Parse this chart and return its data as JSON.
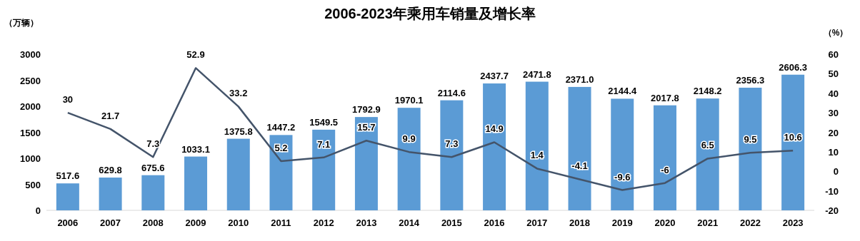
{
  "chart_data": {
    "type": "bar",
    "title": "2006-2023年乘用车销量及增长率",
    "ylabel": "（万辆）",
    "y2label": "（%）",
    "categories": [
      "2006",
      "2007",
      "2008",
      "2009",
      "2010",
      "2011",
      "2012",
      "2013",
      "2014",
      "2015",
      "2016",
      "2017",
      "2018",
      "2019",
      "2020",
      "2021",
      "2022",
      "2023"
    ],
    "series": [
      {
        "color": "#5b9bd5",
        "values": [
          517.6,
          629.8,
          675.6,
          1033.1,
          1375.8,
          1447.2,
          1549.5,
          1792.9,
          1970.1,
          2114.6,
          2437.7,
          2471.8,
          2371.0,
          2144.4,
          2017.8,
          2148.2,
          2356.3,
          2606.3
        ],
        "value_labels": [
          "517.6",
          "629.8",
          "675.6",
          "1033.1",
          "1375.8",
          "1447.2",
          "1549.5",
          "1792.9",
          "1970.1",
          "2114.6",
          "2437.7",
          "2471.8",
          "2371.0",
          "2144.4",
          "2017.8",
          "2148.2",
          "2356.3",
          "2606.3"
        ]
      },
      {
        "type": "line",
        "axis": "y2",
        "color": "#44546a",
        "values": [
          30,
          21.7,
          7.3,
          52.9,
          33.2,
          5.2,
          7.1,
          15.7,
          9.9,
          7.3,
          14.9,
          1.4,
          -4.1,
          -9.6,
          -6,
          6.5,
          9.5,
          10.6
        ],
        "value_labels": [
          "30",
          "21.7",
          "7.3",
          "52.9",
          "33.2",
          "5.2",
          "7.1",
          "15.7",
          "9.9",
          "7.3",
          "14.9",
          "1.4",
          "-4.1",
          "-9.6",
          "-6",
          "6.5",
          "9.5",
          "10.6"
        ]
      }
    ],
    "ylim": [
      0,
      3000
    ],
    "yticks": [
      0,
      500,
      1000,
      1500,
      2000,
      2500,
      3000
    ],
    "y2lim": [
      -20,
      60
    ],
    "y2ticks": [
      -20,
      -10,
      0,
      10,
      20,
      30,
      40,
      50,
      60
    ]
  }
}
